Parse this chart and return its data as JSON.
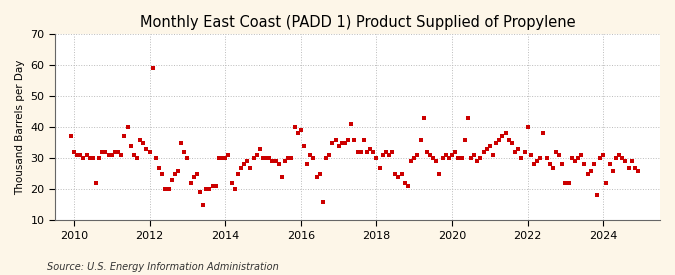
{
  "title": "Monthly East Coast (PADD 1) Product Supplied of Propylene",
  "ylabel": "Thousand Barrels per Day",
  "source": "Source: U.S. Energy Information Administration",
  "background_color": "#fdf6e8",
  "plot_background_color": "#ffffff",
  "marker_color": "#cc0000",
  "marker_size": 3.5,
  "marker_style": "s",
  "ylim": [
    10,
    70
  ],
  "yticks": [
    10,
    20,
    30,
    40,
    50,
    60,
    70
  ],
  "xlim_start": 2009.5,
  "xlim_end": 2025.5,
  "xticks": [
    2010,
    2012,
    2014,
    2016,
    2018,
    2020,
    2022,
    2024
  ],
  "dates": [
    2009.917,
    2010.0,
    2010.083,
    2010.167,
    2010.25,
    2010.333,
    2010.417,
    2010.5,
    2010.583,
    2010.667,
    2010.75,
    2010.833,
    2010.917,
    2011.0,
    2011.083,
    2011.167,
    2011.25,
    2011.333,
    2011.417,
    2011.5,
    2011.583,
    2011.667,
    2011.75,
    2011.833,
    2011.917,
    2012.0,
    2012.083,
    2012.167,
    2012.25,
    2012.333,
    2012.417,
    2012.5,
    2012.583,
    2012.667,
    2012.75,
    2012.833,
    2012.917,
    2013.0,
    2013.083,
    2013.167,
    2013.25,
    2013.333,
    2013.417,
    2013.5,
    2013.583,
    2013.667,
    2013.75,
    2013.833,
    2013.917,
    2014.0,
    2014.083,
    2014.167,
    2014.25,
    2014.333,
    2014.417,
    2014.5,
    2014.583,
    2014.667,
    2014.75,
    2014.833,
    2014.917,
    2015.0,
    2015.083,
    2015.167,
    2015.25,
    2015.333,
    2015.417,
    2015.5,
    2015.583,
    2015.667,
    2015.75,
    2015.833,
    2015.917,
    2016.0,
    2016.083,
    2016.167,
    2016.25,
    2016.333,
    2016.417,
    2016.5,
    2016.583,
    2016.667,
    2016.75,
    2016.833,
    2016.917,
    2017.0,
    2017.083,
    2017.167,
    2017.25,
    2017.333,
    2017.417,
    2017.5,
    2017.583,
    2017.667,
    2017.75,
    2017.833,
    2017.917,
    2018.0,
    2018.083,
    2018.167,
    2018.25,
    2018.333,
    2018.417,
    2018.5,
    2018.583,
    2018.667,
    2018.75,
    2018.833,
    2018.917,
    2019.0,
    2019.083,
    2019.167,
    2019.25,
    2019.333,
    2019.417,
    2019.5,
    2019.583,
    2019.667,
    2019.75,
    2019.833,
    2019.917,
    2020.0,
    2020.083,
    2020.167,
    2020.25,
    2020.333,
    2020.417,
    2020.5,
    2020.583,
    2020.667,
    2020.75,
    2020.833,
    2020.917,
    2021.0,
    2021.083,
    2021.167,
    2021.25,
    2021.333,
    2021.417,
    2021.5,
    2021.583,
    2021.667,
    2021.75,
    2021.833,
    2021.917,
    2022.0,
    2022.083,
    2022.167,
    2022.25,
    2022.333,
    2022.417,
    2022.5,
    2022.583,
    2022.667,
    2022.75,
    2022.833,
    2022.917,
    2023.0,
    2023.083,
    2023.167,
    2023.25,
    2023.333,
    2023.417,
    2023.5,
    2023.583,
    2023.667,
    2023.75,
    2023.833,
    2023.917,
    2024.0,
    2024.083,
    2024.167,
    2024.25,
    2024.333,
    2024.417,
    2024.5,
    2024.583,
    2024.667,
    2024.75,
    2024.833,
    2024.917
  ],
  "values": [
    37,
    32,
    31,
    31,
    30,
    31,
    30,
    30,
    22,
    30,
    32,
    32,
    31,
    31,
    32,
    32,
    31,
    37,
    40,
    34,
    31,
    30,
    36,
    35,
    33,
    32,
    59,
    30,
    27,
    25,
    20,
    20,
    23,
    25,
    26,
    35,
    32,
    30,
    22,
    24,
    25,
    19,
    15,
    20,
    20,
    21,
    21,
    30,
    30,
    30,
    31,
    22,
    20,
    25,
    27,
    28,
    29,
    27,
    30,
    31,
    33,
    30,
    30,
    30,
    29,
    29,
    28,
    24,
    29,
    30,
    30,
    40,
    38,
    39,
    34,
    28,
    31,
    30,
    24,
    25,
    16,
    30,
    31,
    35,
    36,
    34,
    35,
    35,
    36,
    41,
    36,
    32,
    32,
    36,
    32,
    33,
    32,
    30,
    27,
    31,
    32,
    31,
    32,
    25,
    24,
    25,
    22,
    21,
    29,
    30,
    31,
    36,
    43,
    32,
    31,
    30,
    29,
    25,
    30,
    31,
    30,
    31,
    32,
    30,
    30,
    36,
    43,
    30,
    31,
    29,
    30,
    32,
    33,
    34,
    31,
    35,
    36,
    37,
    38,
    36,
    35,
    32,
    33,
    30,
    32,
    40,
    31,
    28,
    29,
    30,
    38,
    30,
    28,
    27,
    32,
    31,
    28,
    22,
    22,
    30,
    29,
    30,
    31,
    28,
    25,
    26,
    28,
    18,
    30,
    31,
    22,
    28,
    26,
    30,
    31,
    30,
    29,
    27,
    29,
    27,
    26
  ],
  "grid_color": "#bbbbbb",
  "grid_linestyle": ":",
  "grid_linewidth": 0.7,
  "title_fontsize": 10.5,
  "label_fontsize": 7.5,
  "tick_fontsize": 8,
  "source_fontsize": 7
}
